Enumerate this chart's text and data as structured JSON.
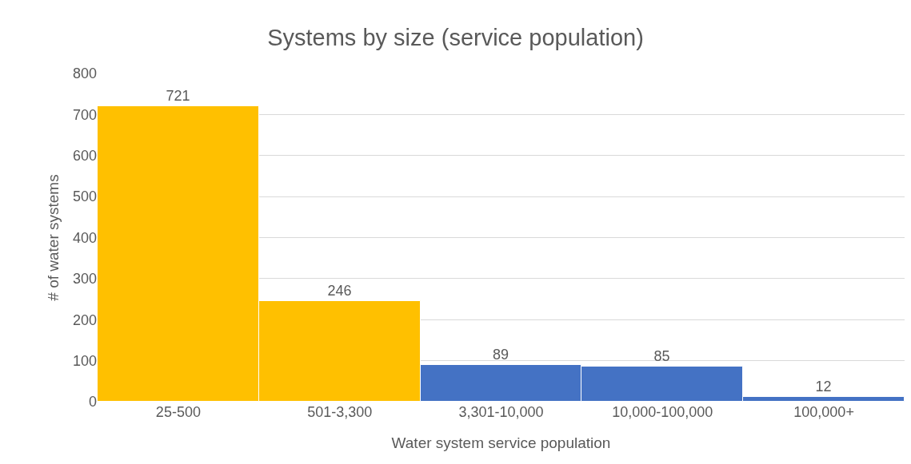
{
  "chart_data": {
    "type": "bar",
    "title": "Systems by size (service population)",
    "xlabel": "Water system service population",
    "ylabel": "# of water systems",
    "categories": [
      "25-500",
      "501-3,300",
      "3,301-10,000",
      "10,000-100,000",
      "100,000+"
    ],
    "values": [
      721,
      246,
      89,
      85,
      12
    ],
    "colors": [
      "#ffc000",
      "#ffc000",
      "#4472c4",
      "#4472c4",
      "#4472c4"
    ],
    "ylim": [
      0,
      800
    ],
    "yticks": [
      0,
      100,
      200,
      300,
      400,
      500,
      600,
      700,
      800
    ],
    "grid": "y",
    "data_labels": true
  }
}
